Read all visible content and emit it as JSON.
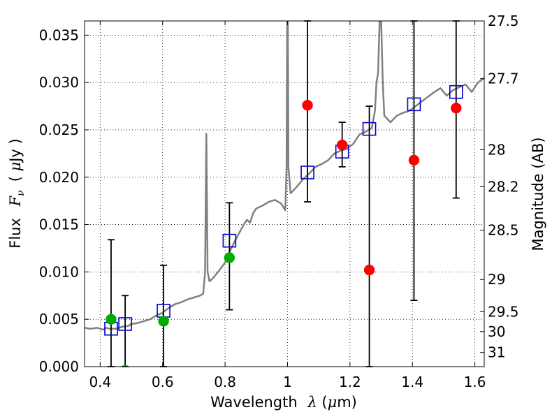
{
  "chart_data": {
    "type": "scatter",
    "xlabel": "Wavelength  λ (μm)",
    "xlabel_parts": {
      "text": "Wavelength",
      "symbol": "λ",
      "unit_open": " (",
      "unit_mu": "μ",
      "unit_rest": "m)"
    },
    "ylabel_parts": {
      "text": "Flux",
      "symbol": "F",
      "sub": "ν",
      "unit_open": "( ",
      "unit_mu": "μ",
      "unit_rest": "Jy )"
    },
    "y2label": "Magnitude (AB)",
    "xlim": [
      0.35,
      1.63
    ],
    "ylim": [
      0.0,
      0.0365
    ],
    "grid": true,
    "x_ticks": [
      {
        "value": 0.4,
        "label": "0.4"
      },
      {
        "value": 0.6,
        "label": "0.6"
      },
      {
        "value": 0.8,
        "label": "0.8"
      },
      {
        "value": 1.0,
        "label": "1"
      },
      {
        "value": 1.2,
        "label": "1.2"
      },
      {
        "value": 1.4,
        "label": "1.4"
      },
      {
        "value": 1.6,
        "label": "1.6"
      }
    ],
    "y_ticks": [
      {
        "value": 0.0,
        "label": "0.000"
      },
      {
        "value": 0.005,
        "label": "0.005"
      },
      {
        "value": 0.01,
        "label": "0.010"
      },
      {
        "value": 0.015,
        "label": "0.015"
      },
      {
        "value": 0.02,
        "label": "0.020"
      },
      {
        "value": 0.025,
        "label": "0.025"
      },
      {
        "value": 0.03,
        "label": "0.030"
      },
      {
        "value": 0.035,
        "label": "0.035"
      }
    ],
    "y2_ticks": [
      {
        "flux": 0.0365,
        "label": "27.5"
      },
      {
        "flux": 0.0304,
        "label": "27.7"
      },
      {
        "flux": 0.0229,
        "label": "28"
      },
      {
        "flux": 0.019,
        "label": "28.2"
      },
      {
        "flux": 0.0144,
        "label": "28.5"
      },
      {
        "flux": 0.0092,
        "label": "29"
      },
      {
        "flux": 0.0058,
        "label": "29.5"
      },
      {
        "flux": 0.0037,
        "label": "30"
      },
      {
        "flux": 0.0015,
        "label": "31"
      }
    ],
    "series": [
      {
        "name": "model-spectrum",
        "kind": "line",
        "color": "#808080",
        "points": [
          [
            0.35,
            0.0041
          ],
          [
            0.37,
            0.004
          ],
          [
            0.39,
            0.0041
          ],
          [
            0.41,
            0.0039
          ],
          [
            0.42,
            0.0041
          ],
          [
            0.43,
            0.004
          ],
          [
            0.45,
            0.004
          ],
          [
            0.47,
            0.0042
          ],
          [
            0.49,
            0.0043
          ],
          [
            0.5,
            0.0045
          ],
          [
            0.52,
            0.0046
          ],
          [
            0.54,
            0.0048
          ],
          [
            0.56,
            0.005
          ],
          [
            0.58,
            0.0054
          ],
          [
            0.6,
            0.0057
          ],
          [
            0.62,
            0.0062
          ],
          [
            0.64,
            0.0066
          ],
          [
            0.66,
            0.0068
          ],
          [
            0.68,
            0.0071
          ],
          [
            0.7,
            0.0073
          ],
          [
            0.72,
            0.0075
          ],
          [
            0.73,
            0.0077
          ],
          [
            0.736,
            0.01
          ],
          [
            0.74,
            0.0246
          ],
          [
            0.744,
            0.01
          ],
          [
            0.75,
            0.009
          ],
          [
            0.76,
            0.0093
          ],
          [
            0.78,
            0.0101
          ],
          [
            0.8,
            0.011
          ],
          [
            0.82,
            0.0125
          ],
          [
            0.84,
            0.0138
          ],
          [
            0.86,
            0.015
          ],
          [
            0.87,
            0.0155
          ],
          [
            0.88,
            0.0152
          ],
          [
            0.89,
            0.0162
          ],
          [
            0.9,
            0.0167
          ],
          [
            0.92,
            0.017
          ],
          [
            0.94,
            0.0174
          ],
          [
            0.96,
            0.0176
          ],
          [
            0.98,
            0.0172
          ],
          [
            0.993,
            0.0165
          ],
          [
            0.997,
            0.021
          ],
          [
            0.999,
            0.0365
          ],
          [
            1.001,
            0.0365
          ],
          [
            1.003,
            0.021
          ],
          [
            1.01,
            0.0183
          ],
          [
            1.03,
            0.019
          ],
          [
            1.05,
            0.0198
          ],
          [
            1.07,
            0.0204
          ],
          [
            1.09,
            0.0211
          ],
          [
            1.11,
            0.0214
          ],
          [
            1.13,
            0.0218
          ],
          [
            1.15,
            0.0225
          ],
          [
            1.17,
            0.0228
          ],
          [
            1.19,
            0.023
          ],
          [
            1.21,
            0.0235
          ],
          [
            1.23,
            0.0245
          ],
          [
            1.25,
            0.0248
          ],
          [
            1.27,
            0.0252
          ],
          [
            1.28,
            0.027
          ],
          [
            1.285,
            0.03
          ],
          [
            1.29,
            0.031
          ],
          [
            1.295,
            0.0365
          ],
          [
            1.3,
            0.0365
          ],
          [
            1.305,
            0.03
          ],
          [
            1.31,
            0.0265
          ],
          [
            1.33,
            0.0258
          ],
          [
            1.35,
            0.0265
          ],
          [
            1.37,
            0.0268
          ],
          [
            1.39,
            0.027
          ],
          [
            1.41,
            0.0275
          ],
          [
            1.43,
            0.028
          ],
          [
            1.45,
            0.0285
          ],
          [
            1.47,
            0.029
          ],
          [
            1.49,
            0.0294
          ],
          [
            1.51,
            0.0286
          ],
          [
            1.53,
            0.0292
          ],
          [
            1.55,
            0.0295
          ],
          [
            1.57,
            0.0298
          ],
          [
            1.59,
            0.029
          ],
          [
            1.61,
            0.03
          ],
          [
            1.63,
            0.0305
          ]
        ]
      },
      {
        "name": "model-photometry",
        "kind": "open-square",
        "color": "#0000cc",
        "points": [
          [
            0.435,
            0.004
          ],
          [
            0.48,
            0.0045
          ],
          [
            0.603,
            0.0059
          ],
          [
            0.814,
            0.0133
          ],
          [
            1.064,
            0.0205
          ],
          [
            1.175,
            0.0227
          ],
          [
            1.262,
            0.0251
          ],
          [
            1.405,
            0.0277
          ],
          [
            1.54,
            0.029
          ]
        ]
      },
      {
        "name": "observed-detections",
        "kind": "filled-circle",
        "color": "#00aa00",
        "points": [
          {
            "x": 0.435,
            "y": 0.005,
            "err_low": 0.0,
            "err_high": 0.0134
          },
          {
            "x": 0.48,
            "y": -0.0004,
            "err_low": 0.0,
            "err_high": 0.0075
          },
          {
            "x": 0.603,
            "y": 0.0048,
            "err_low": 0.0,
            "err_high": 0.0107
          },
          {
            "x": 0.814,
            "y": 0.0115,
            "err_low": 0.006,
            "err_high": 0.0173
          }
        ]
      },
      {
        "name": "observed-ir",
        "kind": "filled-circle",
        "color": "#ff0000",
        "points": [
          {
            "x": 1.064,
            "y": 0.0276,
            "err_low": 0.0174,
            "err_high": 0.0365
          },
          {
            "x": 1.175,
            "y": 0.0234,
            "err_low": 0.0211,
            "err_high": 0.0258
          },
          {
            "x": 1.262,
            "y": 0.0102,
            "err_low": 0.0,
            "err_high": 0.0275
          },
          {
            "x": 1.405,
            "y": 0.0218,
            "err_low": 0.007,
            "err_high": 0.0365
          },
          {
            "x": 1.54,
            "y": 0.0273,
            "err_low": 0.0178,
            "err_high": 0.0365
          }
        ]
      }
    ]
  }
}
